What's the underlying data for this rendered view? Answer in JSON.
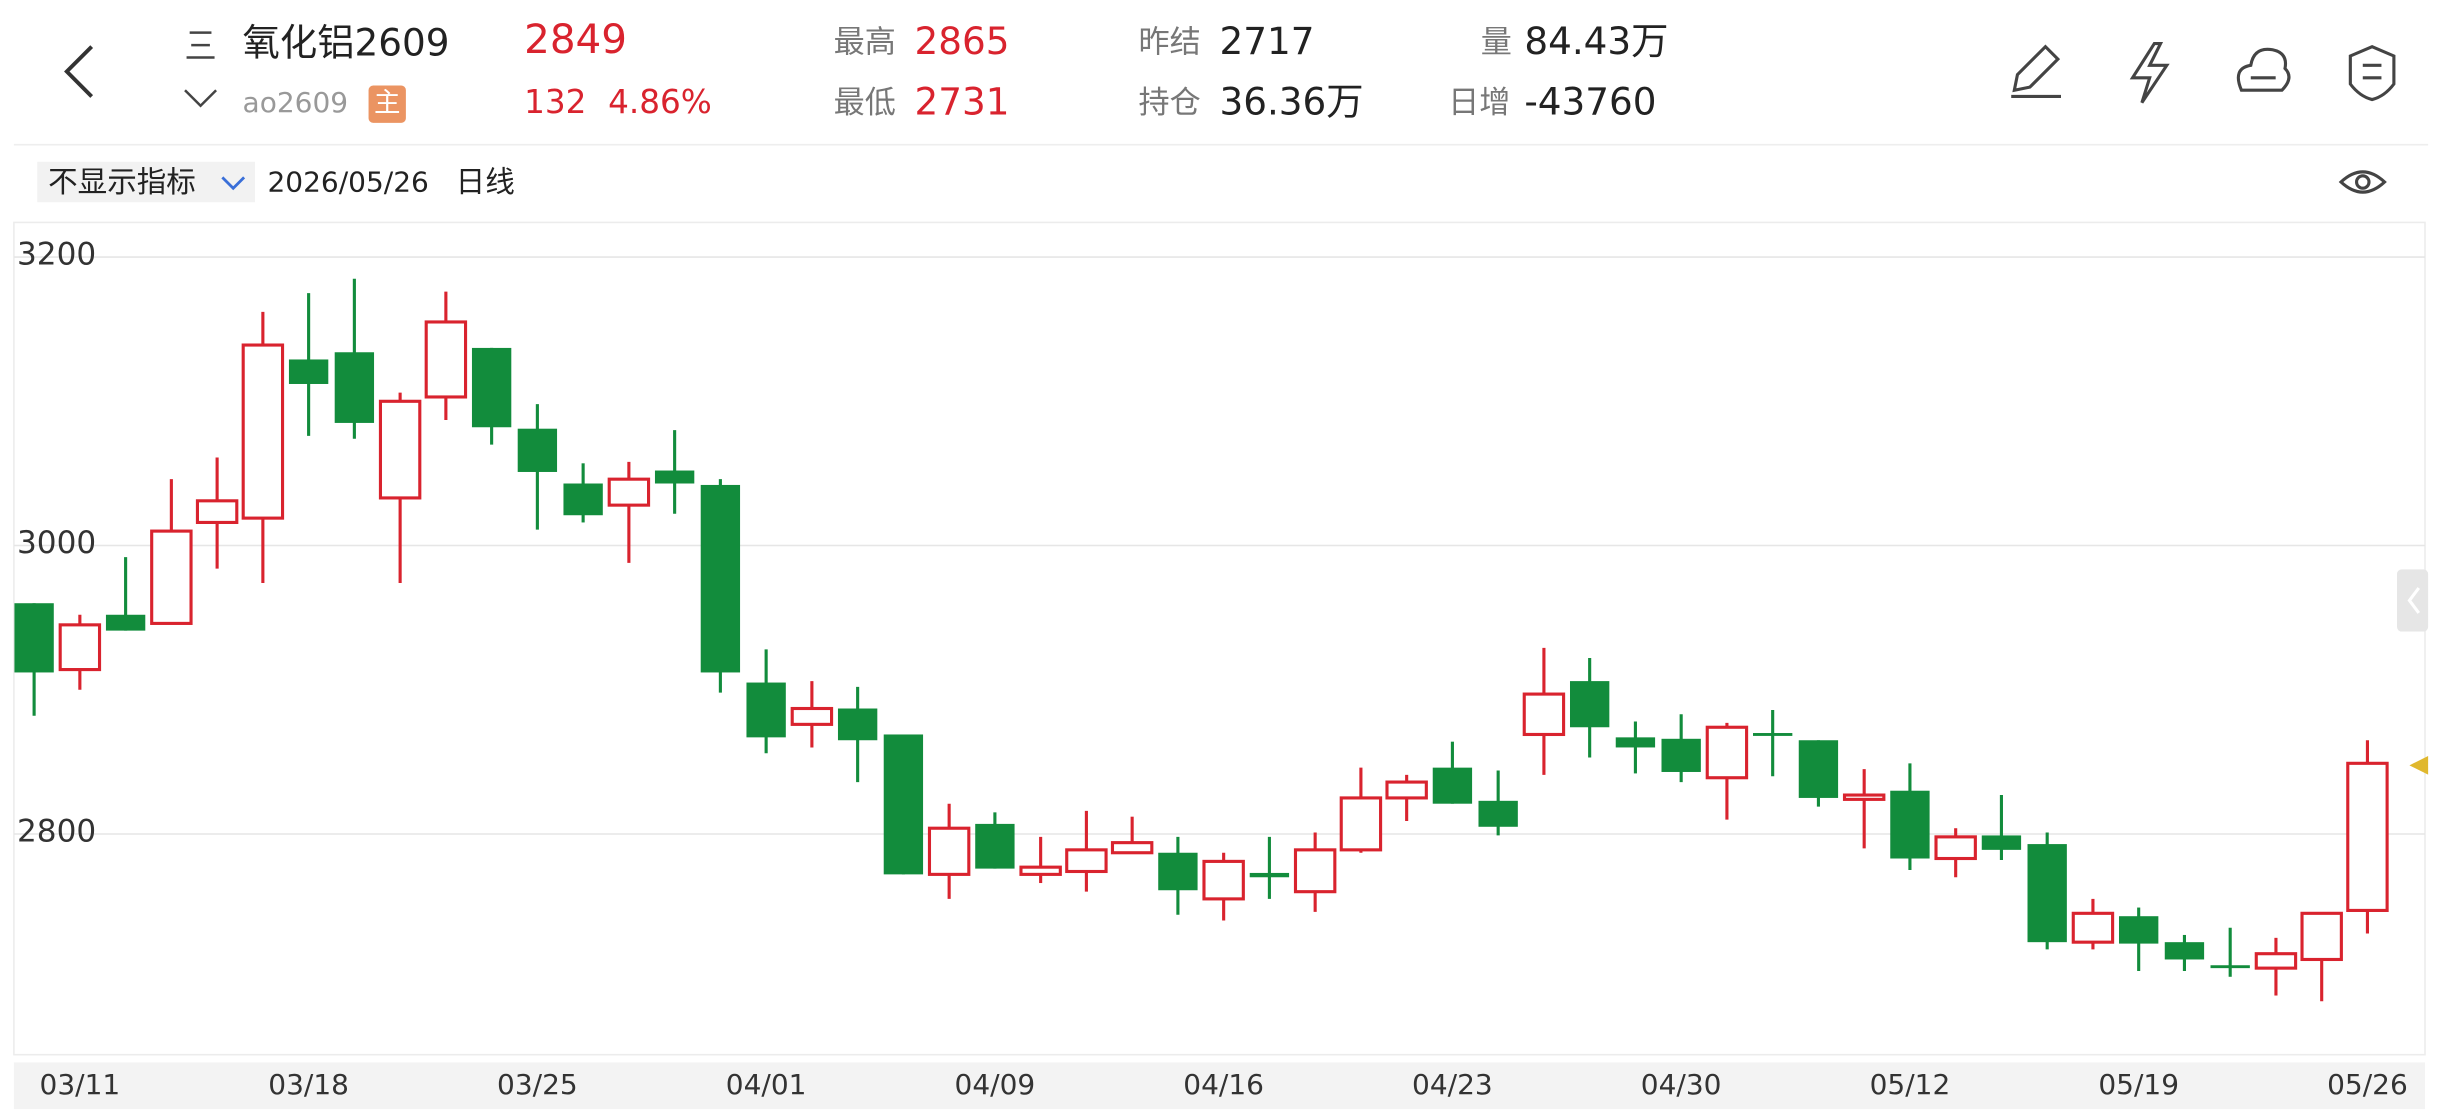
{
  "header": {
    "title": "氧化铝2609",
    "code": "ao2609",
    "badge": "主",
    "last": 2849,
    "change": 132,
    "change_pct": "4.86%",
    "stats": [
      {
        "label": "最高",
        "value": 2865
      },
      {
        "label": "最低",
        "value": 2731
      },
      {
        "label": "昨结",
        "value": 2717
      },
      {
        "label": "持仓",
        "value": "36.36万"
      },
      {
        "label": "量",
        "value": "84.43万"
      },
      {
        "label": "日增",
        "value": "-43760"
      }
    ]
  },
  "toolbar": {
    "indicator": "不显示指标",
    "date": "2026/05/26",
    "period": "日线"
  },
  "chart_data": {
    "type": "candlestick",
    "x": [
      null,
      "03/11",
      null,
      null,
      null,
      null,
      "03/18",
      null,
      null,
      null,
      null,
      "03/25",
      null,
      null,
      null,
      null,
      "04/01",
      null,
      null,
      null,
      null,
      "04/09",
      null,
      null,
      null,
      null,
      "04/16",
      null,
      null,
      null,
      null,
      "04/23",
      null,
      null,
      null,
      null,
      "04/30",
      null,
      null,
      null,
      null,
      "05/12",
      null,
      null,
      null,
      null,
      "05/19",
      null,
      null,
      null,
      null,
      "05/26"
    ],
    "open": [
      2960,
      2914,
      2952,
      2946,
      3016,
      3019,
      3129,
      3134,
      3033,
      3103,
      3137,
      3081,
      3043,
      3028,
      3052,
      3042,
      2905,
      2876,
      2887,
      2869,
      2772,
      2807,
      2772,
      2774,
      2787,
      2787,
      2755,
      2773,
      2760,
      2789,
      2825,
      2846,
      2823,
      2869,
      2906,
      2867,
      2866,
      2839,
      2870,
      2865,
      2824,
      2830,
      2783,
      2799,
      2793,
      2725,
      2743,
      2725,
      2709,
      2707,
      2713,
      2747
    ],
    "high": [
      2960,
      2952,
      2992,
      3046,
      3061,
      3162,
      3175,
      3185,
      3106,
      3176,
      3137,
      3098,
      3057,
      3058,
      3080,
      3046,
      2928,
      2906,
      2902,
      2869,
      2821,
      2815,
      2798,
      2816,
      2812,
      2798,
      2787,
      2798,
      2801,
      2846,
      2841,
      2864,
      2844,
      2929,
      2922,
      2878,
      2883,
      2877,
      2886,
      2865,
      2845,
      2849,
      2804,
      2827,
      2801,
      2755,
      2749,
      2730,
      2735,
      2728,
      2745,
      2865
    ],
    "low": [
      2882,
      2900,
      2941,
      2946,
      2984,
      2974,
      3076,
      3074,
      2974,
      3087,
      3070,
      3011,
      3016,
      2988,
      3022,
      2898,
      2856,
      2860,
      2836,
      2772,
      2755,
      2776,
      2766,
      2760,
      2787,
      2744,
      2740,
      2755,
      2746,
      2787,
      2809,
      2821,
      2799,
      2841,
      2853,
      2842,
      2836,
      2810,
      2840,
      2819,
      2790,
      2775,
      2770,
      2782,
      2720,
      2720,
      2705,
      2705,
      2701,
      2688,
      2684,
      2731
    ],
    "close": [
      2912,
      2945,
      2941,
      3010,
      3031,
      3139,
      3112,
      3085,
      3100,
      3155,
      3082,
      3051,
      3021,
      3046,
      3043,
      2912,
      2867,
      2887,
      2865,
      2772,
      2804,
      2776,
      2777,
      2789,
      2794,
      2761,
      2781,
      2770,
      2789,
      2825,
      2836,
      2821,
      2805,
      2897,
      2874,
      2860,
      2843,
      2874,
      2868,
      2825,
      2827,
      2783,
      2798,
      2789,
      2725,
      2745,
      2724,
      2713,
      2707,
      2717,
      2745,
      2849
    ],
    "ylim": [
      2647,
      3224
    ],
    "yticks": [
      2800,
      3000,
      3200
    ],
    "grid": true,
    "up_color": "#d9232e",
    "down_color": "#128c3c"
  }
}
